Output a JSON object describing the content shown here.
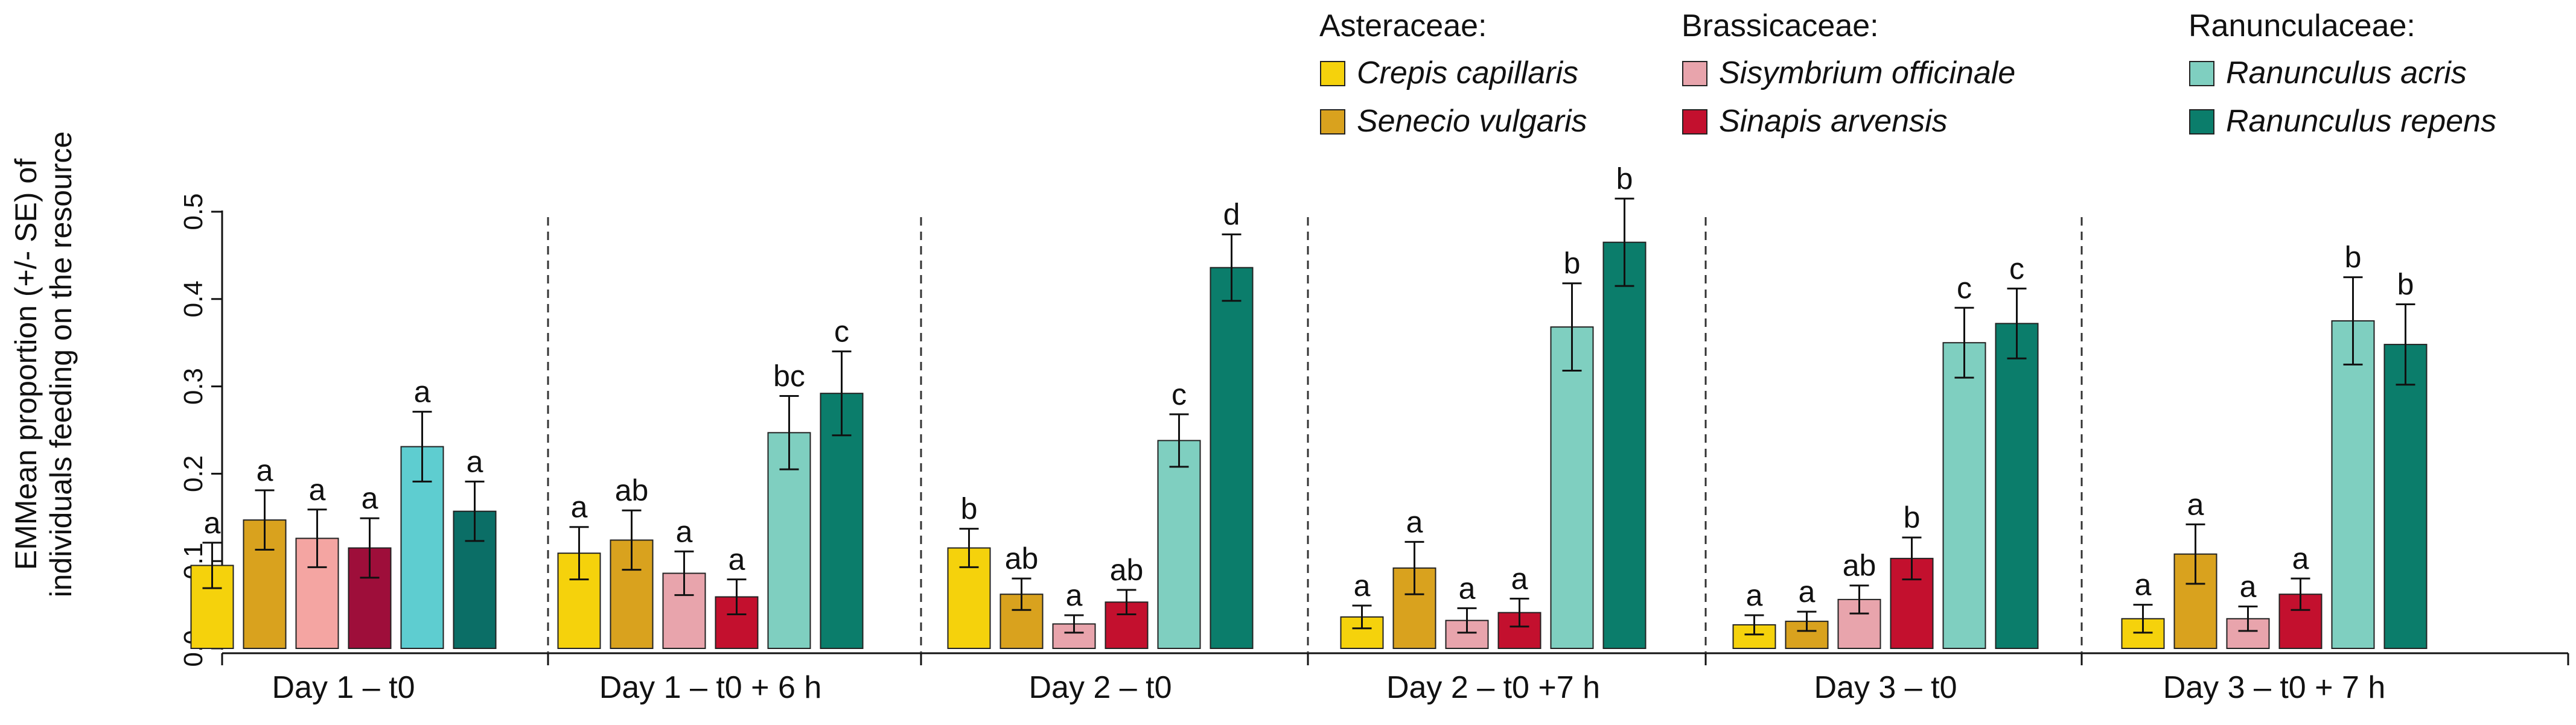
{
  "chart_data": {
    "type": "bar",
    "ylabel": "EMMean proportion (+/- SE) of individuals feeding on the resource",
    "ylim": [
      0,
      0.5
    ],
    "yticks": [
      0.0,
      0.1,
      0.2,
      0.3,
      0.4,
      0.5
    ],
    "ytick_labels": [
      "0.0",
      "0.1",
      "0.2",
      "0.3",
      "0.4",
      "0.5"
    ],
    "panel_separators": "dashed vertical lines",
    "legend": {
      "families": [
        {
          "name": "Asteraceae:",
          "species": [
            0,
            1
          ]
        },
        {
          "name": "Brassicaceae:",
          "species": [
            2,
            3
          ]
        },
        {
          "name": "Ranunculaceae:",
          "species": [
            4,
            5
          ]
        }
      ],
      "placement": "top-right"
    },
    "species": [
      {
        "name": "Crepis capillaris",
        "color": "#F5D20C"
      },
      {
        "name": "Senecio vulgaris",
        "color": "#D9A21E"
      },
      {
        "name": "Sisymbrium officinale",
        "color": "#E8A4AC"
      },
      {
        "name": "Sinapis arvensis",
        "color": "#C3102E"
      },
      {
        "name": "Ranunculus acris",
        "color": "#7FCFC0"
      },
      {
        "name": "Ranunculus repens",
        "color": "#0B7D6B"
      }
    ],
    "groups": [
      {
        "label": "Day 1 – t0",
        "values": [
          0.095,
          0.147,
          0.126,
          0.115,
          0.231,
          0.157
        ],
        "se": [
          0.026,
          0.034,
          0.033,
          0.034,
          0.04,
          0.034
        ],
        "letters": [
          "a",
          "a",
          "a",
          "a",
          "a",
          "a"
        ],
        "colors": [
          "#F5D20C",
          "#D9A21E",
          "#F4A5A2",
          "#9E0E3A",
          "#5ECDD0",
          "#0B6E66"
        ]
      },
      {
        "label": "Day 1 – t0 + 6 h",
        "values": [
          0.109,
          0.124,
          0.086,
          0.059,
          0.247,
          0.292
        ],
        "se": [
          0.03,
          0.034,
          0.025,
          0.02,
          0.042,
          0.048
        ],
        "letters": [
          "a",
          "ab",
          "a",
          "a",
          "bc",
          "c"
        ]
      },
      {
        "label": "Day 2 – t0",
        "values": [
          0.115,
          0.062,
          0.028,
          0.053,
          0.238,
          0.436
        ],
        "se": [
          0.022,
          0.018,
          0.01,
          0.014,
          0.03,
          0.038
        ],
        "letters": [
          "b",
          "ab",
          "a",
          "ab",
          "c",
          "d"
        ]
      },
      {
        "label": "Day 2 – t0 +7 h",
        "values": [
          0.036,
          0.092,
          0.032,
          0.041,
          0.368,
          0.465
        ],
        "se": [
          0.013,
          0.03,
          0.014,
          0.016,
          0.05,
          0.05
        ],
        "letters": [
          "a",
          "a",
          "a",
          "a",
          "b",
          "b"
        ]
      },
      {
        "label": "Day 3 – t0",
        "values": [
          0.027,
          0.031,
          0.056,
          0.103,
          0.35,
          0.372
        ],
        "se": [
          0.011,
          0.011,
          0.016,
          0.024,
          0.04,
          0.04
        ],
        "letters": [
          "a",
          "a",
          "ab",
          "b",
          "c",
          "c"
        ]
      },
      {
        "label": "Day 3 – t0 + 7 h",
        "values": [
          0.034,
          0.108,
          0.034,
          0.062,
          0.375,
          0.348
        ],
        "se": [
          0.016,
          0.034,
          0.014,
          0.018,
          0.05,
          0.046
        ],
        "letters": [
          "a",
          "a",
          "a",
          "a",
          "b",
          "b"
        ]
      }
    ]
  }
}
